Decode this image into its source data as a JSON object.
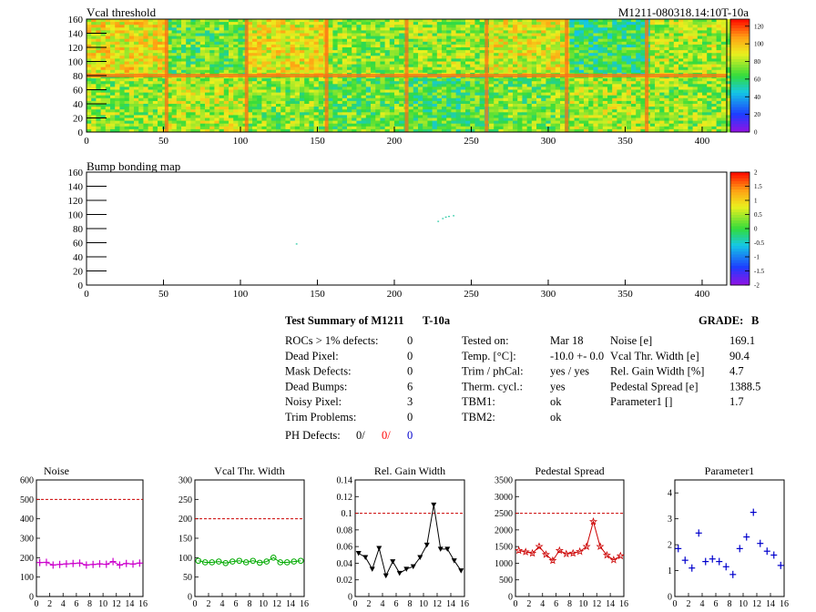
{
  "module_id": "M1211-080318.14:10T-10a",
  "maps": [
    {
      "title": "Vcal threshold",
      "x_ticks": [
        "0",
        "50",
        "100",
        "150",
        "200",
        "250",
        "300",
        "350",
        "400"
      ],
      "y_ticks": [
        "0",
        "20",
        "40",
        "60",
        "80",
        "100",
        "120",
        "140",
        "160"
      ],
      "palette_ticks": [
        "0",
        "20",
        "40",
        "60",
        "80",
        "100",
        "120"
      ],
      "roc_levels": [
        [
          92,
          70,
          90,
          76,
          78,
          88,
          62,
          80
        ],
        [
          76,
          82,
          74,
          70,
          66,
          72,
          80,
          76
        ]
      ],
      "colors": {
        "low": "#9b0bd4",
        "mid": "#38e040",
        "high": "#ff1c00"
      }
    },
    {
      "title": "Bump bonding map",
      "x_ticks": [
        "0",
        "50",
        "100",
        "150",
        "200",
        "250",
        "300",
        "350",
        "400"
      ],
      "y_ticks": [
        "0",
        "20",
        "40",
        "60",
        "80",
        "100",
        "120",
        "140",
        "160"
      ],
      "palette_ticks": [
        "-2",
        "-1.5",
        "-1",
        "-0.5",
        "0",
        "0.5",
        "1",
        "1.5",
        "2"
      ],
      "defect_pixels": [
        [
          136,
          59
        ],
        [
          228,
          91
        ],
        [
          231,
          95
        ],
        [
          233,
          97
        ],
        [
          235,
          98
        ],
        [
          238,
          99
        ]
      ]
    }
  ],
  "summary": {
    "title": "Test Summary of M1211",
    "temp_tag": "T-10a",
    "grade_label": "GRADE:",
    "grade_value": "B",
    "left": [
      {
        "label": "ROCs > 1% defects:",
        "value": "0"
      },
      {
        "label": "Dead Pixel:",
        "value": "0"
      },
      {
        "label": "Mask Defects:",
        "value": "0"
      },
      {
        "label": "Dead Bumps:",
        "value": "6"
      },
      {
        "label": "Noisy Pixel:",
        "value": "3"
      },
      {
        "label": "Trim Problems:",
        "value": "0"
      }
    ],
    "ph_label": "PH Defects:",
    "ph_values": [
      {
        "value": "0/",
        "color": "#000000"
      },
      {
        "value": "0/",
        "color": "#ff0000"
      },
      {
        "value": "0",
        "color": "#0000cc"
      }
    ],
    "middle": [
      {
        "label": "Tested on:",
        "value": "Mar 18"
      },
      {
        "label": "Temp. [°C]:",
        "value": "-10.0 +- 0.0"
      },
      {
        "label": "Trim / phCal:",
        "value": "yes / yes"
      },
      {
        "label": "Therm. cycl.:",
        "value": "yes"
      },
      {
        "label": "TBM1:",
        "value": "ok"
      },
      {
        "label": "TBM2:",
        "value": "ok"
      }
    ],
    "right": [
      {
        "label": "Noise [e]",
        "value": "169.1"
      },
      {
        "label": "Vcal Thr. Width [e]",
        "value": "90.4"
      },
      {
        "label": "Rel. Gain Width [%]",
        "value": "4.7"
      },
      {
        "label": "Pedestal Spread [e]",
        "value": "1388.5"
      },
      {
        "label": "Parameter1 []",
        "value": "1.7"
      }
    ]
  },
  "chart_data": [
    {
      "type": "line",
      "title": "Noise",
      "color": "#cc00cc",
      "marker": "cross",
      "x": [
        0,
        1,
        2,
        3,
        4,
        5,
        6,
        7,
        8,
        9,
        10,
        11,
        12,
        13,
        14,
        15
      ],
      "values": [
        175,
        176,
        162,
        165,
        168,
        170,
        172,
        162,
        165,
        168,
        166,
        180,
        162,
        170,
        167,
        172
      ],
      "xlim": [
        0,
        16
      ],
      "ylim": [
        0,
        600
      ],
      "yticks": [
        "0",
        "100",
        "200",
        "300",
        "400",
        "500",
        "600"
      ],
      "limit": 500,
      "xticks": [
        "0",
        "2",
        "4",
        "6",
        "8",
        "10",
        "12",
        "14",
        "16"
      ]
    },
    {
      "type": "line",
      "title": "Vcal Thr. Width",
      "color": "#00aa00",
      "marker": "circle",
      "x": [
        0,
        1,
        2,
        3,
        4,
        5,
        6,
        7,
        8,
        9,
        10,
        11,
        12,
        13,
        14,
        15
      ],
      "values": [
        92,
        88,
        88,
        90,
        86,
        90,
        92,
        88,
        92,
        87,
        90,
        100,
        88,
        88,
        90,
        92
      ],
      "xlim": [
        0,
        16
      ],
      "ylim": [
        0,
        300
      ],
      "yticks": [
        "0",
        "50",
        "100",
        "150",
        "200",
        "250",
        "300"
      ],
      "limit": 200,
      "xticks": [
        "0",
        "2",
        "4",
        "6",
        "8",
        "10",
        "12",
        "14",
        "16"
      ]
    },
    {
      "type": "line",
      "title": "Rel. Gain Width",
      "color": "#000000",
      "marker": "triangle-down",
      "x": [
        0,
        1,
        2,
        3,
        4,
        5,
        6,
        7,
        8,
        9,
        10,
        11,
        12,
        13,
        14,
        15
      ],
      "values": [
        0.052,
        0.047,
        0.033,
        0.058,
        0.025,
        0.042,
        0.028,
        0.033,
        0.036,
        0.047,
        0.062,
        0.11,
        0.057,
        0.057,
        0.043,
        0.031
      ],
      "xlim": [
        0,
        16
      ],
      "ylim": [
        0,
        0.14
      ],
      "yticks": [
        "0",
        "0.02",
        "0.04",
        "0.06",
        "0.08",
        "0.1",
        "0.12",
        "0.14"
      ],
      "limit": 0.1,
      "xticks": [
        "0",
        "2",
        "4",
        "6",
        "8",
        "10",
        "12",
        "14",
        "16"
      ]
    },
    {
      "type": "line",
      "title": "Pedestal Spread",
      "color": "#cc0000",
      "marker": "star",
      "x": [
        0,
        1,
        2,
        3,
        4,
        5,
        6,
        7,
        8,
        9,
        10,
        11,
        12,
        13,
        14,
        15
      ],
      "values": [
        1380,
        1340,
        1300,
        1500,
        1260,
        1080,
        1380,
        1280,
        1300,
        1350,
        1500,
        2250,
        1500,
        1240,
        1100,
        1220
      ],
      "xlim": [
        0,
        16
      ],
      "ylim": [
        0,
        3500
      ],
      "yticks": [
        "0",
        "500",
        "1000",
        "1500",
        "2000",
        "2500",
        "3000",
        "3500"
      ],
      "limit": 2500,
      "xticks": [
        "0",
        "2",
        "4",
        "6",
        "8",
        "10",
        "12",
        "14",
        "16"
      ]
    },
    {
      "type": "scatter",
      "title": "Parameter1",
      "color": "#0000cc",
      "marker": "cross",
      "x": [
        0,
        1,
        2,
        3,
        4,
        5,
        6,
        7,
        8,
        9,
        10,
        11,
        12,
        13,
        14,
        15
      ],
      "values": [
        1.85,
        1.4,
        1.1,
        2.45,
        1.35,
        1.45,
        1.35,
        1.15,
        0.85,
        1.85,
        2.3,
        3.25,
        2.05,
        1.75,
        1.6,
        1.2
      ],
      "xlim": [
        0,
        16
      ],
      "ylim": [
        0,
        4.5
      ],
      "yticks": [
        "0",
        "1",
        "2",
        "3",
        "4"
      ],
      "xticks": [
        "0",
        "2",
        "4",
        "6",
        "8",
        "10",
        "12",
        "14",
        "16"
      ]
    }
  ]
}
